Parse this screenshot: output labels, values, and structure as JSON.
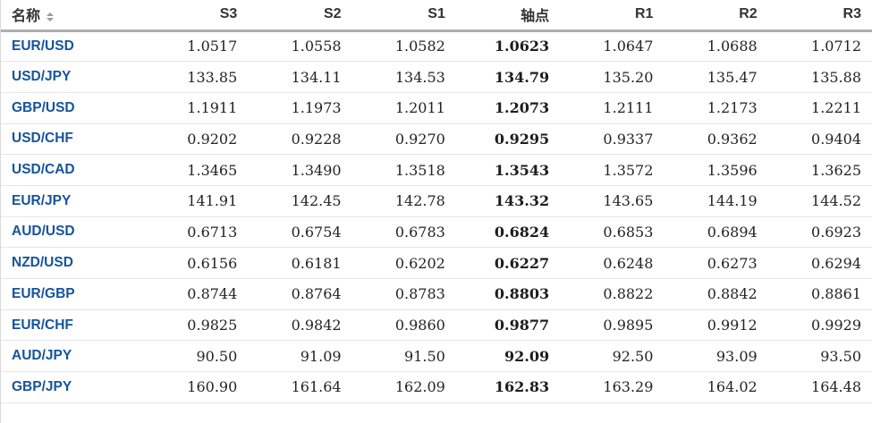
{
  "table": {
    "columns": [
      {
        "key": "name",
        "label": "名称",
        "align": "left",
        "sortable": true
      },
      {
        "key": "s3",
        "label": "S3"
      },
      {
        "key": "s2",
        "label": "S2"
      },
      {
        "key": "s1",
        "label": "S1"
      },
      {
        "key": "pivot",
        "label": "轴点",
        "bold": true
      },
      {
        "key": "r1",
        "label": "R1"
      },
      {
        "key": "r2",
        "label": "R2"
      },
      {
        "key": "r3",
        "label": "R3"
      }
    ],
    "rows": [
      {
        "name": "EUR/USD",
        "s3": "1.0517",
        "s2": "1.0558",
        "s1": "1.0582",
        "pivot": "1.0623",
        "r1": "1.0647",
        "r2": "1.0688",
        "r3": "1.0712"
      },
      {
        "name": "USD/JPY",
        "s3": "133.85",
        "s2": "134.11",
        "s1": "134.53",
        "pivot": "134.79",
        "r1": "135.20",
        "r2": "135.47",
        "r3": "135.88"
      },
      {
        "name": "GBP/USD",
        "s3": "1.1911",
        "s2": "1.1973",
        "s1": "1.2011",
        "pivot": "1.2073",
        "r1": "1.2111",
        "r2": "1.2173",
        "r3": "1.2211"
      },
      {
        "name": "USD/CHF",
        "s3": "0.9202",
        "s2": "0.9228",
        "s1": "0.9270",
        "pivot": "0.9295",
        "r1": "0.9337",
        "r2": "0.9362",
        "r3": "0.9404"
      },
      {
        "name": "USD/CAD",
        "s3": "1.3465",
        "s2": "1.3490",
        "s1": "1.3518",
        "pivot": "1.3543",
        "r1": "1.3572",
        "r2": "1.3596",
        "r3": "1.3625"
      },
      {
        "name": "EUR/JPY",
        "s3": "141.91",
        "s2": "142.45",
        "s1": "142.78",
        "pivot": "143.32",
        "r1": "143.65",
        "r2": "144.19",
        "r3": "144.52"
      },
      {
        "name": "AUD/USD",
        "s3": "0.6713",
        "s2": "0.6754",
        "s1": "0.6783",
        "pivot": "0.6824",
        "r1": "0.6853",
        "r2": "0.6894",
        "r3": "0.6923"
      },
      {
        "name": "NZD/USD",
        "s3": "0.6156",
        "s2": "0.6181",
        "s1": "0.6202",
        "pivot": "0.6227",
        "r1": "0.6248",
        "r2": "0.6273",
        "r3": "0.6294"
      },
      {
        "name": "EUR/GBP",
        "s3": "0.8744",
        "s2": "0.8764",
        "s1": "0.8783",
        "pivot": "0.8803",
        "r1": "0.8822",
        "r2": "0.8842",
        "r3": "0.8861"
      },
      {
        "name": "EUR/CHF",
        "s3": "0.9825",
        "s2": "0.9842",
        "s1": "0.9860",
        "pivot": "0.9877",
        "r1": "0.9895",
        "r2": "0.9912",
        "r3": "0.9929"
      },
      {
        "name": "AUD/JPY",
        "s3": "90.50",
        "s2": "91.09",
        "s1": "91.50",
        "pivot": "92.09",
        "r1": "92.50",
        "r2": "93.09",
        "r3": "93.50"
      },
      {
        "name": "GBP/JPY",
        "s3": "160.90",
        "s2": "161.64",
        "s1": "162.09",
        "pivot": "162.83",
        "r1": "163.29",
        "r2": "164.02",
        "r3": "164.48"
      }
    ]
  },
  "colors": {
    "pair_link": "#15549c",
    "value_text": "#232323",
    "header_text": "#333333",
    "row_border": "#e6e6e6",
    "header_border": "#aeaeae"
  },
  "icons": {
    "name_sort": "sort-arrows"
  }
}
